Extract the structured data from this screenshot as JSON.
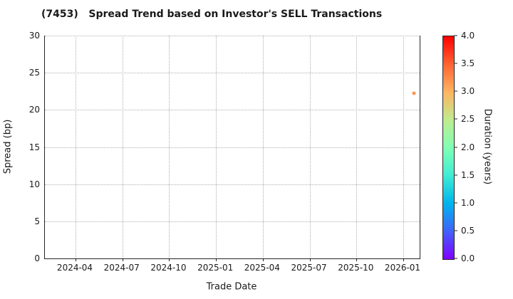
{
  "title": "(7453)   Spread Trend based on Investor's SELL Transactions",
  "chart_data": {
    "type": "scatter",
    "title": "(7453)   Spread Trend based on Investor's SELL Transactions",
    "xlabel": "Trade Date",
    "ylabel": "Spread (bp)",
    "x_tick_labels": [
      "2024-04",
      "2024-07",
      "2024-10",
      "2025-01",
      "2025-04",
      "2025-07",
      "2025-10",
      "2026-01"
    ],
    "y_tick_labels": [
      "30",
      "25",
      "20",
      "15",
      "10",
      "5",
      "0"
    ],
    "ylim": [
      0,
      30
    ],
    "grid": "dotted",
    "legend": "none",
    "points": [
      {
        "approx_date": "2026-01",
        "spread_bp": 22.2,
        "duration_years": 3.2,
        "x_fraction": 0.985,
        "color": "#fb964e"
      }
    ],
    "colorbar": {
      "label": "Duration (years)",
      "range": [
        0.0,
        4.0
      ],
      "tick_labels": [
        "4.0",
        "3.5",
        "3.0",
        "2.5",
        "2.0",
        "1.5",
        "1.0",
        "0.5",
        "0.0"
      ],
      "colormap": "rainbow",
      "gradient_stops_bottom_to_top": [
        "#8000ff",
        "#4062fa",
        "#00b4ec",
        "#40ecd4",
        "#80ffb4",
        "#bfec8e",
        "#ffb461",
        "#ff6232",
        "#ff0000"
      ]
    }
  },
  "colors": {
    "background": "#ffffff",
    "spine": "#262626",
    "grid": "#b0b0b0",
    "text": "#1a1a1a"
  }
}
